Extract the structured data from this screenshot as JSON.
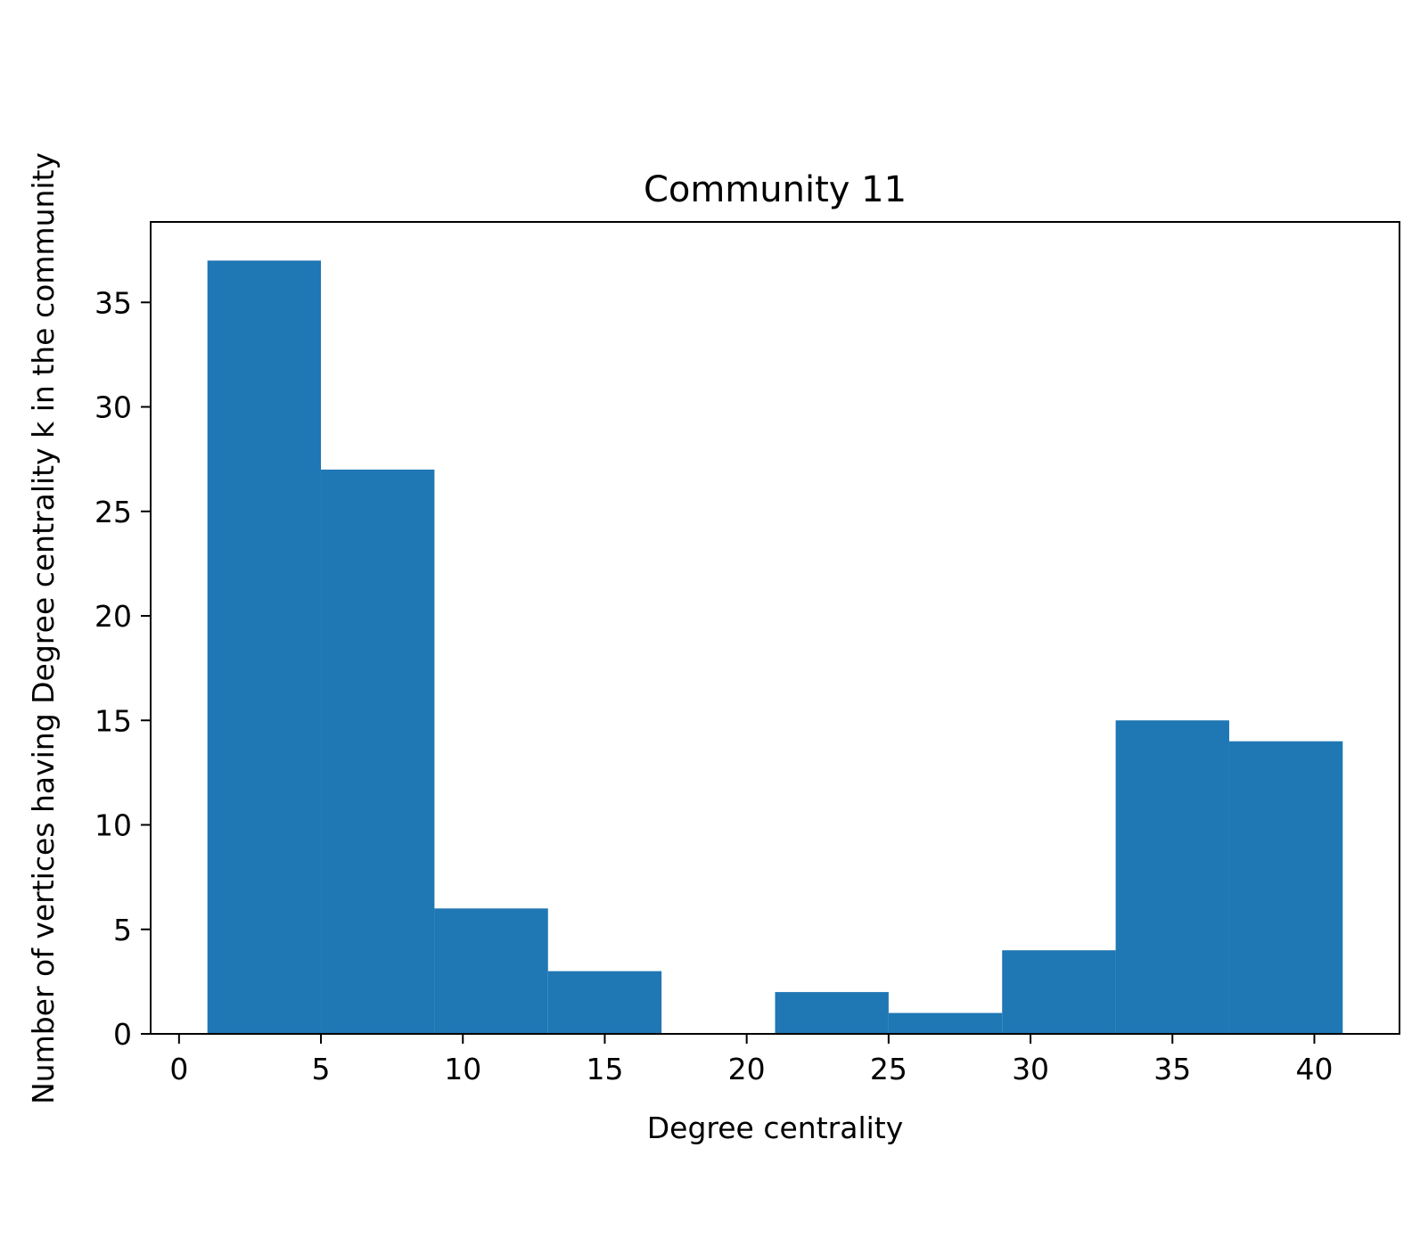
{
  "chart_data": {
    "type": "bar",
    "title": "Community 11",
    "xlabel": "Degree centrality",
    "ylabel": "Number of vertices having Degree centrality k in the community",
    "bins": [
      {
        "x0": 1,
        "x1": 5,
        "value": 37
      },
      {
        "x0": 5,
        "x1": 9,
        "value": 27
      },
      {
        "x0": 9,
        "x1": 13,
        "value": 6
      },
      {
        "x0": 13,
        "x1": 17,
        "value": 3
      },
      {
        "x0": 17,
        "x1": 21,
        "value": 0
      },
      {
        "x0": 21,
        "x1": 25,
        "value": 2
      },
      {
        "x0": 25,
        "x1": 29,
        "value": 1
      },
      {
        "x0": 29,
        "x1": 33,
        "value": 4
      },
      {
        "x0": 33,
        "x1": 37,
        "value": 15
      },
      {
        "x0": 37,
        "x1": 41,
        "value": 14
      }
    ],
    "xlim": [
      -1.0,
      43.0
    ],
    "ylim": [
      0,
      38.85
    ],
    "xticks": [
      0,
      5,
      10,
      15,
      20,
      25,
      30,
      35,
      40
    ],
    "yticks": [
      0,
      5,
      10,
      15,
      20,
      25,
      30,
      35
    ],
    "bar_color": "#1f77b4",
    "grid": false,
    "legend": "none"
  }
}
